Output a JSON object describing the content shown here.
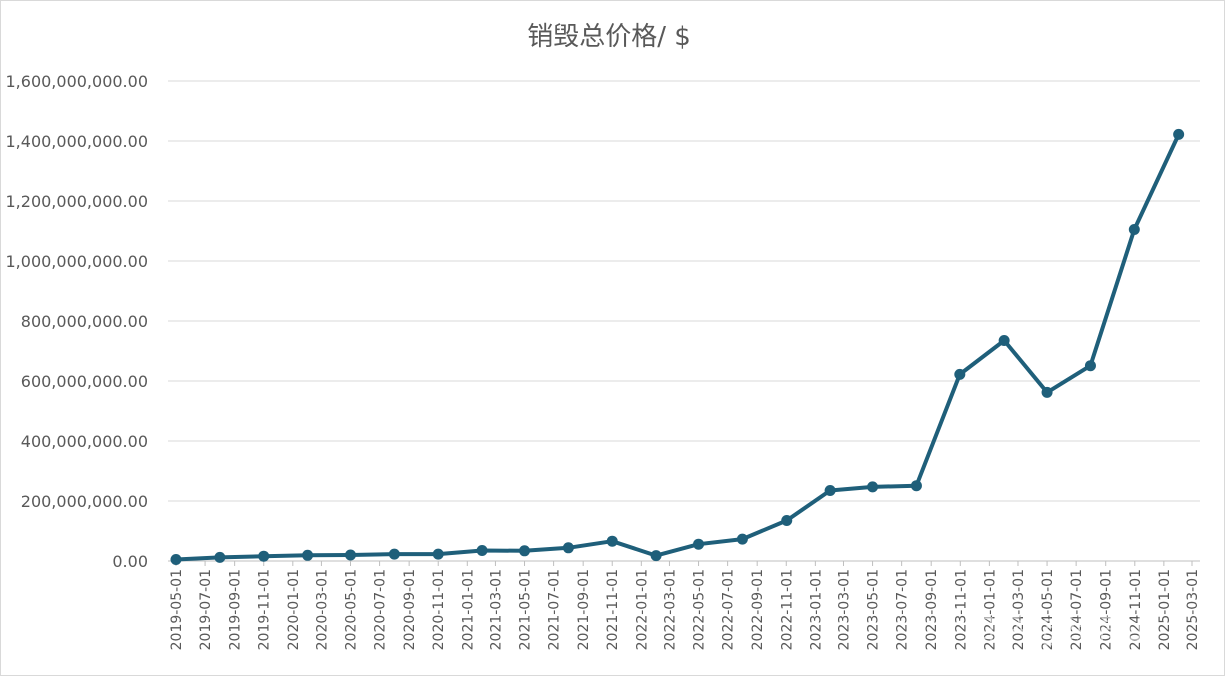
{
  "chart_data": {
    "type": "line",
    "title": "销毁总价格/ $",
    "xlabel": "",
    "ylabel": "",
    "ylim": [
      0,
      1600000000
    ],
    "yticks": [
      0,
      200000000,
      400000000,
      600000000,
      800000000,
      1000000000,
      1200000000,
      1400000000,
      1600000000
    ],
    "ytick_labels": [
      "0.00",
      "200,000,000.00",
      "400,000,000.00",
      "600,000,000.00",
      "800,000,000.00",
      "1,000,000,000.00",
      "1,200,000,000.00",
      "1,400,000,000.00",
      "1,600,000,000.00"
    ],
    "x_tick_labels": [
      "2019-05-01",
      "2019-07-01",
      "2019-09-01",
      "2019-11-01",
      "2020-01-01",
      "2020-03-01",
      "2020-05-01",
      "2020-07-01",
      "2020-09-01",
      "2020-11-01",
      "2021-01-01",
      "2021-03-01",
      "2021-05-01",
      "2021-07-01",
      "2021-09-01",
      "2021-11-01",
      "2022-01-01",
      "2022-03-01",
      "2022-05-01",
      "2022-07-01",
      "2022-09-01",
      "2022-11-01",
      "2023-01-01",
      "2023-03-01",
      "2023-05-01",
      "2023-07-01",
      "2023-09-01",
      "2023-11-01",
      "2024-01-01",
      "2024-03-01",
      "2024-05-01",
      "2024-07-01",
      "2024-09-01",
      "2024-11-01",
      "2025-01-01",
      "2025-03-01"
    ],
    "x": [
      "2019-05-01",
      "2019-08-01",
      "2019-11-01",
      "2020-02-01",
      "2020-05-01",
      "2020-08-01",
      "2020-11-01",
      "2021-02-01",
      "2021-05-01",
      "2021-08-01",
      "2021-11-01",
      "2022-02-01",
      "2022-05-01",
      "2022-08-01",
      "2022-11-02",
      "2023-02-01",
      "2023-05-01",
      "2023-08-01",
      "2023-10-31",
      "2024-02-01",
      "2024-05-01",
      "2024-07-31",
      "2024-10-31",
      "2025-02-01"
    ],
    "values": [
      5000000,
      12000000,
      16000000,
      19000000,
      20000000,
      23000000,
      23000000,
      35000000,
      34000000,
      44000000,
      66000000,
      18000000,
      56000000,
      73000000,
      135000000,
      235000000,
      247000000,
      251000000,
      622000000,
      735000000,
      562000000,
      651000000,
      1105000000,
      1422000000
    ],
    "grid": true,
    "legend": "none",
    "line_color": "#1f5f7a",
    "grid_color": "#d9d9d9",
    "watermark": "知乎 @绿青山"
  }
}
